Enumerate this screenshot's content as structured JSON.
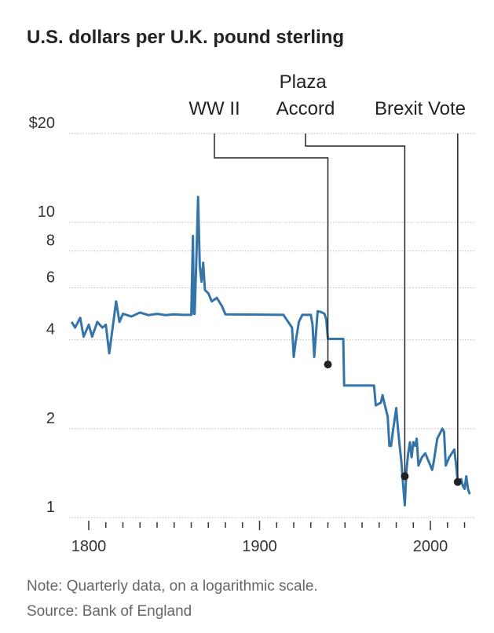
{
  "chart_data": {
    "type": "line",
    "title": "U.S. dollars per U.K. pound sterling",
    "note": "Note: Quarterly data, on a logarithmic scale.",
    "source": "Source: Bank of England",
    "log_y": true,
    "grid": true,
    "color": "#3574a8",
    "xlim": [
      1790,
      2025
    ],
    "xticks": [
      1800,
      1900,
      2000
    ],
    "minor_xticks": [
      1810,
      1820,
      1830,
      1840,
      1850,
      1860,
      1870,
      1880,
      1890,
      1910,
      1920,
      1930,
      1940,
      1950,
      1960,
      1970,
      1980,
      1990,
      2010,
      2020
    ],
    "ylim": [
      1,
      20
    ],
    "yticks": [
      1,
      2,
      4,
      6,
      8,
      10,
      {
        "value": 20,
        "label": "$20"
      }
    ],
    "x": [
      1790,
      1792,
      1795,
      1797,
      1800,
      1802,
      1805,
      1808,
      1810,
      1812,
      1814,
      1816,
      1818,
      1820,
      1825,
      1830,
      1835,
      1840,
      1845,
      1850,
      1855,
      1860,
      1861,
      1861.5,
      1862,
      1863,
      1864,
      1865,
      1866,
      1867,
      1868,
      1870,
      1872,
      1875,
      1878,
      1880,
      1914,
      1915,
      1919,
      1920,
      1921,
      1923,
      1925,
      1930,
      1931,
      1932,
      1933,
      1934,
      1936,
      1938,
      1939,
      1940,
      1949,
      1949.5,
      1967,
      1968,
      1971,
      1972,
      1973,
      1975,
      1976,
      1977,
      1978,
      1980,
      1981,
      1982,
      1983,
      1984,
      1985,
      1986,
      1987,
      1988,
      1989,
      1990,
      1991,
      1992,
      1993,
      1995,
      1997,
      2000,
      2001,
      2002,
      2004,
      2007,
      2008,
      2009,
      2011,
      2014,
      2015,
      2016,
      2018,
      2019,
      2020,
      2021,
      2022,
      2023
    ],
    "values": [
      4.6,
      4.4,
      4.75,
      4.1,
      4.5,
      4.1,
      4.6,
      4.4,
      4.5,
      3.6,
      4.4,
      5.4,
      4.6,
      4.9,
      4.8,
      4.95,
      4.85,
      4.9,
      4.85,
      4.88,
      4.86,
      4.86,
      9,
      4.9,
      4.9,
      7.5,
      12.2,
      7.1,
      6.3,
      7.3,
      5.9,
      5.75,
      5.4,
      5.55,
      5.2,
      4.88,
      4.86,
      4.76,
      4.4,
      3.5,
      3.9,
      4.6,
      4.86,
      4.86,
      4.5,
      3.5,
      4.2,
      5.0,
      4.97,
      4.9,
      4.7,
      4.03,
      4.03,
      2.8,
      2.8,
      2.4,
      2.45,
      2.6,
      2.45,
      2.2,
      1.75,
      1.75,
      1.95,
      2.35,
      2.0,
      1.75,
      1.55,
      1.3,
      1.1,
      1.45,
      1.65,
      1.8,
      1.6,
      1.8,
      1.75,
      1.85,
      1.5,
      1.6,
      1.65,
      1.5,
      1.45,
      1.55,
      1.85,
      2.0,
      1.95,
      1.5,
      1.6,
      1.7,
      1.52,
      1.32,
      1.35,
      1.28,
      1.25,
      1.38,
      1.25,
      1.2
    ],
    "annotations": [
      {
        "label": "WW II",
        "x": 1940,
        "y": 3.3
      },
      {
        "label": "Plaza Accord",
        "x": 1985,
        "y": 1.38
      },
      {
        "label": "Brexit Vote",
        "x": 2016,
        "y": 1.32
      }
    ]
  }
}
